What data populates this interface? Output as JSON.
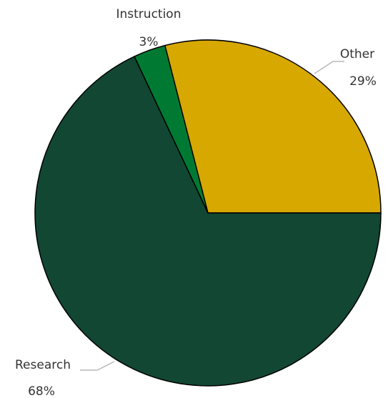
{
  "chart_data": {
    "type": "pie",
    "categories": [
      "Other",
      "Instruction",
      "Research"
    ],
    "values": [
      29,
      3,
      68
    ],
    "value_labels": [
      "29%",
      "3%",
      "68%"
    ],
    "colors": [
      "#d6a800",
      "#007a33",
      "#124734"
    ]
  }
}
